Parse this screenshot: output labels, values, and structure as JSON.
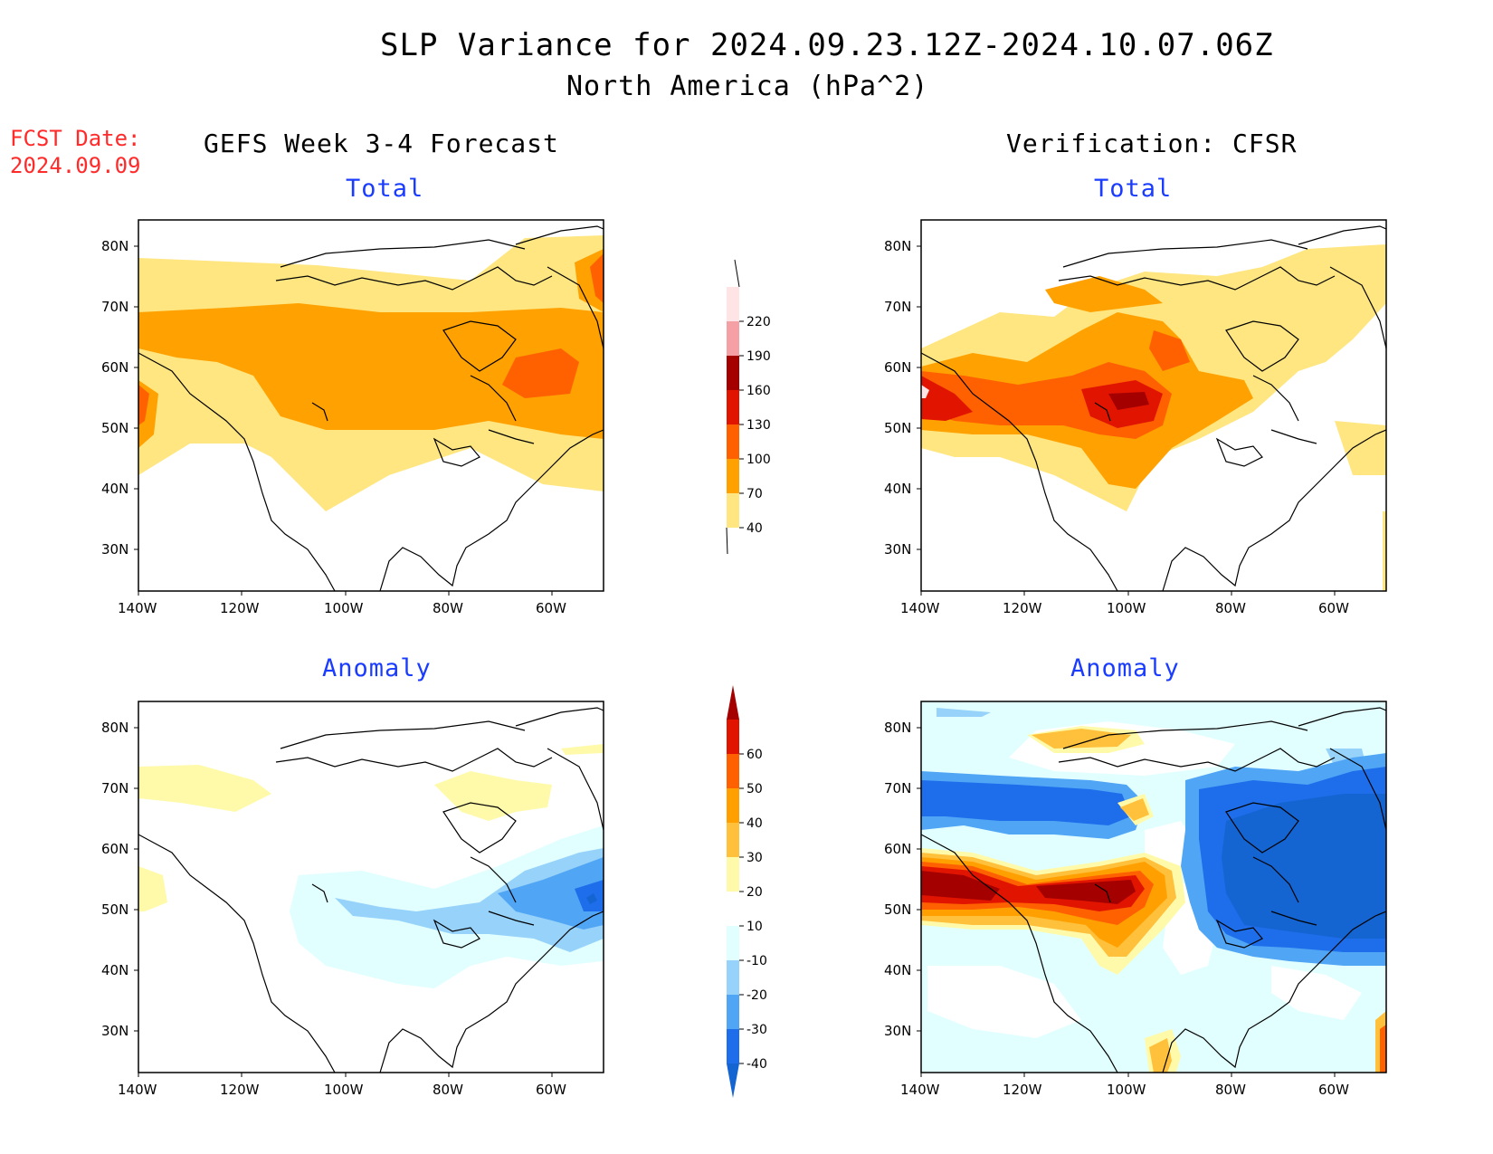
{
  "header": {
    "title": "SLP Variance for 2024.09.23.12Z-2024.10.07.06Z",
    "subtitle": "North America (hPa^2)",
    "fcst_label": "FCST Date:",
    "fcst_date": "2024.09.09"
  },
  "columns": {
    "left": "GEFS Week 3-4 Forecast",
    "right": "Verification: CFSR"
  },
  "panels": {
    "top_left": "Total",
    "top_right": "Total",
    "bottom_left": "Anomaly",
    "bottom_right": "Anomaly"
  },
  "axes": {
    "lat_labels": [
      "80N",
      "70N",
      "60N",
      "50N",
      "40N",
      "30N"
    ],
    "lon_labels": [
      "140W",
      "120W",
      "100W",
      "80W",
      "60W"
    ]
  },
  "colorbar_total": {
    "levels": [
      "40",
      "70",
      "100",
      "130",
      "160",
      "190",
      "220"
    ],
    "colors": [
      "#ffe680",
      "#ffa100",
      "#ff6100",
      "#e11400",
      "#a50000",
      "#f5a0a5",
      "#ffe4e6"
    ]
  },
  "colorbar_anomaly": {
    "levels": [
      "-40",
      "-30",
      "-20",
      "-10",
      "10",
      "20",
      "30",
      "40",
      "50",
      "60"
    ],
    "colors": [
      "#1464d2",
      "#1e6eeb",
      "#50a5f5",
      "#96d2fa",
      "#e1ffff",
      "#ffffff",
      "#fffaaa",
      "#ffc03c",
      "#ffa000",
      "#ff6000",
      "#e11400",
      "#a50000"
    ]
  }
}
